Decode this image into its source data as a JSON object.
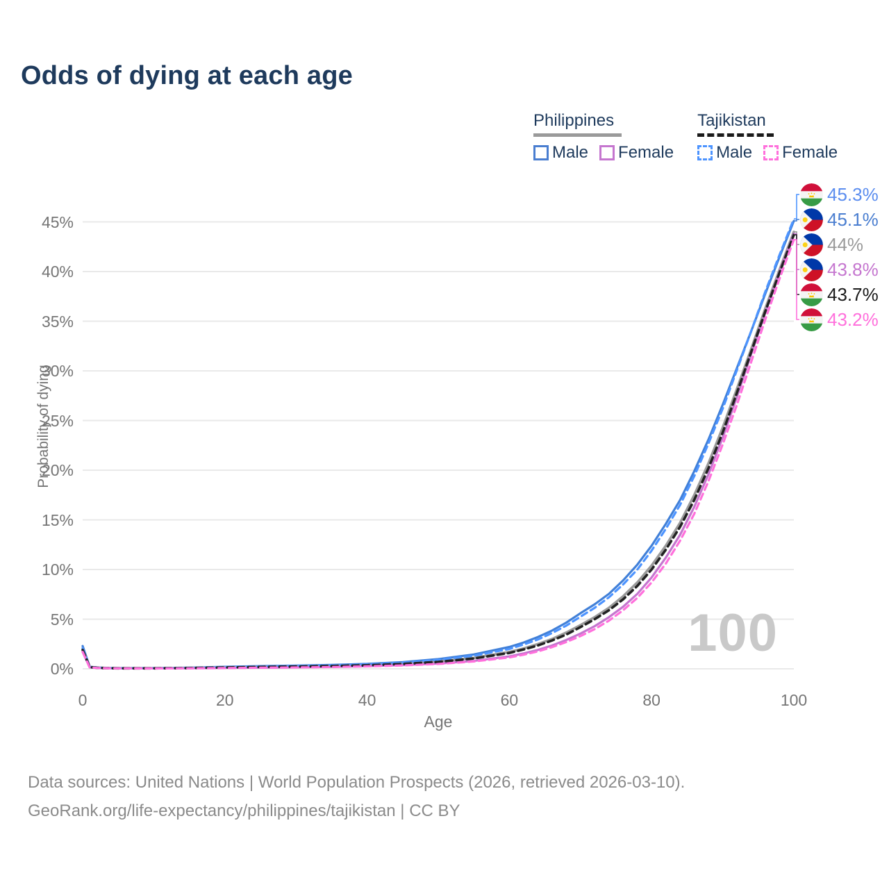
{
  "title": "Odds of dying at each age",
  "watermark": "100",
  "legend": {
    "groups": [
      {
        "label": "Philippines",
        "underline_color": "#9a9a9a",
        "underline_style": "solid",
        "items": [
          {
            "label": "Male",
            "color": "#4a7ed0",
            "style": "solid"
          },
          {
            "label": "Female",
            "color": "#c576cf",
            "style": "solid"
          }
        ]
      },
      {
        "label": "Tajikistan",
        "underline_color": "#1a1a1a",
        "underline_style": "dashed",
        "items": [
          {
            "label": "Male",
            "color": "#4d94ff",
            "style": "dashed"
          },
          {
            "label": "Female",
            "color": "#ff70dc",
            "style": "dashed"
          }
        ]
      }
    ]
  },
  "footer": {
    "line1": "Data sources: United Nations | World Population Prospects (2026, retrieved 2026-03-10).",
    "line2": "GeoRank.org/life-expectancy/philippines/tajikistan | CC BY"
  },
  "chart_data": {
    "type": "line",
    "title": "Odds of dying at each age",
    "xlabel": "Age",
    "ylabel": "Probability of dying",
    "xlim": [
      0,
      100
    ],
    "ylim": [
      0,
      47
    ],
    "grid": "horizontal",
    "legend_position": "top-right",
    "x_ticks": [
      {
        "value": 0,
        "label": "0"
      },
      {
        "value": 20,
        "label": "20"
      },
      {
        "value": 40,
        "label": "40"
      },
      {
        "value": 60,
        "label": "60"
      },
      {
        "value": 80,
        "label": "80"
      },
      {
        "value": 100,
        "label": "100"
      }
    ],
    "y_ticks": [
      {
        "value": 0,
        "label": "0%"
      },
      {
        "value": 5,
        "label": "5%"
      },
      {
        "value": 10,
        "label": "10%"
      },
      {
        "value": 15,
        "label": "15%"
      },
      {
        "value": 20,
        "label": "20%"
      },
      {
        "value": 25,
        "label": "25%"
      },
      {
        "value": 30,
        "label": "30%"
      },
      {
        "value": 35,
        "label": "35%"
      },
      {
        "value": 40,
        "label": "40%"
      },
      {
        "value": 45,
        "label": "45%"
      }
    ],
    "ages": [
      0,
      1,
      2,
      3,
      4,
      5,
      10,
      15,
      20,
      25,
      30,
      35,
      40,
      45,
      50,
      55,
      60,
      62,
      64,
      66,
      68,
      70,
      72,
      74,
      76,
      78,
      80,
      82,
      84,
      86,
      88,
      90,
      92,
      94,
      96,
      98,
      100
    ],
    "series": [
      {
        "name": "Philippines Male",
        "country": "Philippines",
        "sex": "male",
        "flag": "ph",
        "color": "#4180d8",
        "label_color": "#4a7ed0",
        "dash": "solid",
        "width": 3.2,
        "end_label": "45.1%",
        "end_value": 45.1,
        "values": [
          2.3,
          0.2,
          0.14,
          0.1,
          0.08,
          0.07,
          0.07,
          0.11,
          0.2,
          0.27,
          0.33,
          0.4,
          0.5,
          0.68,
          0.98,
          1.45,
          2.2,
          2.65,
          3.2,
          3.85,
          4.65,
          5.6,
          6.5,
          7.55,
          8.9,
          10.5,
          12.4,
          14.6,
          17.0,
          19.9,
          23.1,
          26.6,
          30.3,
          34.0,
          37.8,
          41.5,
          45.1
        ]
      },
      {
        "name": "Philippines Both sexes",
        "country": "Philippines",
        "sex": "both",
        "flag": "ph",
        "color": "#9a9a9a",
        "label_color": "#9a9a9a",
        "dash": "solid",
        "width": 3.6,
        "end_label": "44%",
        "end_value": 44.0,
        "values": [
          2.0,
          0.18,
          0.12,
          0.09,
          0.07,
          0.06,
          0.06,
          0.09,
          0.15,
          0.2,
          0.24,
          0.3,
          0.38,
          0.52,
          0.74,
          1.1,
          1.7,
          2.05,
          2.5,
          3.0,
          3.65,
          4.4,
          5.2,
          6.15,
          7.3,
          8.7,
          10.4,
          12.4,
          14.7,
          17.5,
          20.7,
          24.3,
          28.2,
          32.2,
          36.3,
          40.2,
          44.0
        ]
      },
      {
        "name": "Philippines Female",
        "country": "Philippines",
        "sex": "female",
        "flag": "ph",
        "color": "#c576cf",
        "label_color": "#c576cf",
        "dash": "solid",
        "width": 3.2,
        "end_label": "43.8%",
        "end_value": 43.8,
        "values": [
          1.7,
          0.15,
          0.1,
          0.07,
          0.06,
          0.05,
          0.04,
          0.06,
          0.09,
          0.12,
          0.15,
          0.2,
          0.27,
          0.37,
          0.53,
          0.8,
          1.25,
          1.55,
          1.9,
          2.35,
          2.9,
          3.55,
          4.3,
          5.2,
          6.25,
          7.55,
          9.2,
          11.2,
          13.5,
          16.3,
          19.6,
          23.3,
          27.4,
          31.7,
          35.9,
          40.0,
          43.8
        ]
      },
      {
        "name": "Tajikistan Male",
        "country": "Tajikistan",
        "sex": "male",
        "flag": "tj",
        "color": "#4d94ff",
        "label_color": "#5b8def",
        "dash": "dashed",
        "width": 3.2,
        "end_label": "45.3%",
        "end_value": 45.3,
        "values": [
          2.1,
          0.19,
          0.13,
          0.09,
          0.07,
          0.06,
          0.06,
          0.1,
          0.18,
          0.24,
          0.3,
          0.37,
          0.46,
          0.62,
          0.9,
          1.32,
          2.0,
          2.45,
          2.95,
          3.6,
          4.35,
          5.25,
          6.15,
          7.2,
          8.5,
          10.0,
          11.9,
          14.1,
          16.5,
          19.4,
          22.7,
          26.2,
          30.1,
          34.0,
          38.0,
          41.7,
          45.3
        ]
      },
      {
        "name": "Tajikistan Both sexes",
        "country": "Tajikistan",
        "sex": "both",
        "flag": "tj",
        "color": "#222222",
        "label_color": "#1a1a1a",
        "dash": "dashed",
        "width": 3.6,
        "end_label": "43.7%",
        "end_value": 43.7,
        "values": [
          1.9,
          0.17,
          0.11,
          0.08,
          0.06,
          0.05,
          0.05,
          0.08,
          0.14,
          0.19,
          0.23,
          0.28,
          0.36,
          0.49,
          0.7,
          1.04,
          1.6,
          1.95,
          2.35,
          2.85,
          3.45,
          4.2,
          5.0,
          5.9,
          7.0,
          8.35,
          10.0,
          12.0,
          14.3,
          17.0,
          20.2,
          23.8,
          27.8,
          31.9,
          36.0,
          39.9,
          43.7
        ]
      },
      {
        "name": "Tajikistan Female",
        "country": "Tajikistan",
        "sex": "female",
        "flag": "tj",
        "color": "#ff70dc",
        "label_color": "#ff70dc",
        "dash": "dashed",
        "width": 3.2,
        "end_label": "43.2%",
        "end_value": 43.2,
        "values": [
          1.7,
          0.14,
          0.09,
          0.07,
          0.05,
          0.05,
          0.04,
          0.05,
          0.08,
          0.11,
          0.14,
          0.18,
          0.25,
          0.34,
          0.49,
          0.74,
          1.15,
          1.42,
          1.75,
          2.18,
          2.7,
          3.3,
          4.0,
          4.85,
          5.9,
          7.15,
          8.7,
          10.6,
          12.9,
          15.6,
          18.9,
          22.6,
          26.6,
          30.9,
          35.2,
          39.3,
          43.2
        ]
      }
    ],
    "end_label_order": [
      "Tajikistan Male",
      "Philippines Male",
      "Philippines Both sexes",
      "Philippines Female",
      "Tajikistan Both sexes",
      "Tajikistan Female"
    ]
  }
}
